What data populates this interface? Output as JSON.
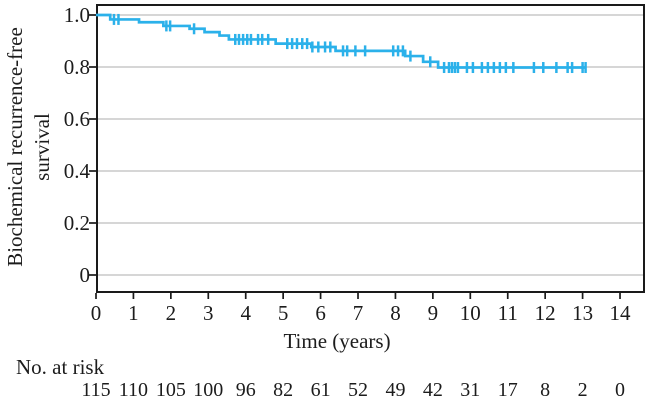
{
  "figure": {
    "ylabel_line1": "Biochemical recurrence-free",
    "ylabel_line2": "survival",
    "xlabel": "Time (years)",
    "risk_label": "No. at risk"
  },
  "colors": {
    "curve": "#2BB1EA",
    "grid": "#c9c9c9",
    "axis": "#1a1a1a",
    "text": "#1c1c1c",
    "background": "#ffffff"
  },
  "chart_data": {
    "type": "line",
    "subtype": "kaplan-meier-step",
    "title": "",
    "xlabel": "Time (years)",
    "ylabel": "Biochemical recurrence-free survival",
    "xlim": [
      0,
      14.68
    ],
    "ylim": [
      -0.07,
      1.04
    ],
    "grid": true,
    "legend": false,
    "yticks": {
      "values": [
        1.0,
        0.8,
        0.6,
        0.4,
        0.2,
        0
      ],
      "labels": [
        "1.0",
        "0.8",
        "0.6",
        "0.4",
        "0.2",
        "0"
      ]
    },
    "xticks": {
      "values": [
        0,
        1,
        2,
        3,
        4,
        5,
        6,
        7,
        8,
        9,
        10,
        11,
        12,
        13,
        14
      ],
      "labels": [
        "0",
        "1",
        "2",
        "3",
        "4",
        "5",
        "6",
        "7",
        "8",
        "9",
        "10",
        "11",
        "12",
        "13",
        "14"
      ]
    },
    "series": [
      {
        "name": "Biochemical recurrence-free survival",
        "color": "#2BB1EA",
        "steps": [
          [
            0,
            1.0
          ],
          [
            0.38,
            0.983
          ],
          [
            1.15,
            0.972
          ],
          [
            1.8,
            0.958
          ],
          [
            2.5,
            0.947
          ],
          [
            2.9,
            0.934
          ],
          [
            3.3,
            0.921
          ],
          [
            3.55,
            0.906
          ],
          [
            4.8,
            0.89
          ],
          [
            5.75,
            0.877
          ],
          [
            6.4,
            0.862
          ],
          [
            8.26,
            0.842
          ],
          [
            8.74,
            0.82
          ],
          [
            9.14,
            0.798
          ]
        ],
        "end_t": 13.1,
        "censor_times": [
          0.48,
          0.6,
          1.88,
          1.98,
          2.62,
          3.72,
          3.82,
          3.93,
          4.04,
          4.14,
          4.33,
          4.44,
          4.6,
          5.11,
          5.24,
          5.37,
          5.51,
          5.64,
          5.78,
          5.94,
          6.12,
          6.26,
          6.6,
          6.71,
          6.93,
          7.19,
          7.94,
          8.07,
          8.2,
          8.4,
          8.93,
          9.3,
          9.43,
          9.51,
          9.59,
          9.67,
          9.91,
          10.07,
          10.31,
          10.47,
          10.63,
          10.79,
          10.95,
          11.15,
          11.7,
          11.95,
          12.3,
          12.6,
          12.72,
          13.0,
          13.08
        ]
      }
    ],
    "risk_table": {
      "label": "No. at risk",
      "times": [
        0,
        1,
        2,
        3,
        4,
        5,
        6,
        7,
        8,
        9,
        10,
        11,
        12,
        13,
        14
      ],
      "values": [
        115,
        110,
        105,
        100,
        96,
        82,
        61,
        52,
        49,
        42,
        31,
        17,
        8,
        2,
        0
      ]
    }
  }
}
